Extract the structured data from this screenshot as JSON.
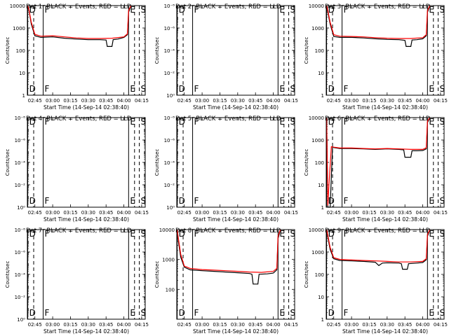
{
  "chart_data": [
    {
      "type": "line",
      "title": "Det 1r BLACK = Events, RED = LLD",
      "ylabel": "Counts/sec",
      "xlabel": "Start Time (14-Sep-14 02:38:40)",
      "x_ticks": [
        "02:45",
        "03:00",
        "03:15",
        "03:30",
        "03:45",
        "04:00",
        "04:15"
      ],
      "y_ticks": [
        "1",
        "10",
        "100",
        "1000",
        "10000"
      ],
      "ylim": [
        1,
        10000
      ],
      "y_scale": "log",
      "xlim": [
        "02:38:40",
        "04:18:00"
      ],
      "markers": [
        {
          "label": "D",
          "time": "02:39:00",
          "style": "solid"
        },
        {
          "label": "",
          "time": "02:44:00",
          "style": "dashed"
        },
        {
          "label": "F",
          "time": "02:52:00",
          "style": "solid"
        },
        {
          "label": "E",
          "time": "04:04:00",
          "style": "solid"
        },
        {
          "label": "",
          "time": "04:09:00",
          "style": "dashed"
        },
        {
          "label": "S",
          "time": "04:13:00",
          "style": "dashed"
        }
      ],
      "series": [
        {
          "name": "Events",
          "color": "#000000",
          "x": [
            "02:39:00",
            "02:40:00",
            "02:42:00",
            "02:45:00",
            "02:50:00",
            "03:00:00",
            "03:10:00",
            "03:20:00",
            "03:30:00",
            "03:40:00",
            "03:45:00",
            "03:46:00",
            "03:50:00",
            "03:51:00",
            "03:55:00",
            "04:00:00",
            "04:03:00",
            "04:04:00",
            "04:06:00"
          ],
          "y": [
            10000,
            6000,
            1500,
            450,
            380,
            400,
            350,
            320,
            300,
            300,
            290,
            150,
            150,
            300,
            320,
            380,
            500,
            5000,
            10000
          ]
        },
        {
          "name": "LLD",
          "color": "#ff0000",
          "x": [
            "02:39:00",
            "02:40:00",
            "02:42:00",
            "02:45:00",
            "02:50:00",
            "03:00:00",
            "03:10:00",
            "03:20:00",
            "03:30:00",
            "03:40:00",
            "03:50:00",
            "04:00:00",
            "04:03:00",
            "04:04:00",
            "04:06:00"
          ],
          "y": [
            10000,
            6500,
            1800,
            520,
            430,
            450,
            400,
            360,
            340,
            340,
            350,
            400,
            550,
            6000,
            10000
          ]
        }
      ]
    },
    {
      "type": "line",
      "title": "Det 2r BLACK = Events, RED = LLD",
      "ylabel": "Counts/sec",
      "xlabel": "Start Time (14-Sep-14 02:38:40)",
      "x_ticks": [
        "02:45",
        "03:00",
        "03:15",
        "03:30",
        "03:45",
        "04:00",
        "04:15"
      ],
      "y_ticks": [
        "10⁰",
        "10⁻²",
        "10⁻⁴",
        "10⁻⁶",
        "10⁻⁸"
      ],
      "ylim": [
        1e-08,
        1
      ],
      "y_scale": "log",
      "xlim": [
        "02:38:40",
        "04:18:00"
      ],
      "markers": [
        {
          "label": "D",
          "time": "02:39:00",
          "style": "solid"
        },
        {
          "label": "",
          "time": "02:44:00",
          "style": "dashed"
        },
        {
          "label": "F",
          "time": "02:52:00",
          "style": "solid"
        },
        {
          "label": "E",
          "time": "04:04:00",
          "style": "solid"
        },
        {
          "label": "",
          "time": "04:09:00",
          "style": "dashed"
        },
        {
          "label": "S",
          "time": "04:13:00",
          "style": "dashed"
        }
      ],
      "series": []
    },
    {
      "type": "line",
      "title": "Det 3r BLACK = Events, RED = LLD",
      "ylabel": "Counts/sec",
      "xlabel": "Start Time (14-Sep-14 02:38:40)",
      "x_ticks": [
        "02:45",
        "03:00",
        "03:15",
        "03:30",
        "03:45",
        "04:00",
        "04:15"
      ],
      "y_ticks": [
        "1",
        "10",
        "100",
        "1000",
        "10000"
      ],
      "ylim": [
        1,
        10000
      ],
      "y_scale": "log",
      "xlim": [
        "02:38:40",
        "04:18:00"
      ],
      "markers": [
        {
          "label": "D",
          "time": "02:39:00",
          "style": "solid"
        },
        {
          "label": "",
          "time": "02:44:00",
          "style": "dashed"
        },
        {
          "label": "F",
          "time": "02:52:00",
          "style": "solid"
        },
        {
          "label": "E",
          "time": "04:04:00",
          "style": "solid"
        },
        {
          "label": "",
          "time": "04:09:00",
          "style": "dashed"
        },
        {
          "label": "S",
          "time": "04:13:00",
          "style": "dashed"
        }
      ],
      "series": [
        {
          "name": "Events",
          "color": "#000000",
          "x": [
            "02:39:00",
            "02:40:00",
            "02:42:00",
            "02:45:00",
            "02:50:00",
            "03:00:00",
            "03:10:00",
            "03:20:00",
            "03:30:00",
            "03:40:00",
            "03:45:00",
            "03:46:00",
            "03:50:00",
            "03:51:00",
            "03:55:00",
            "04:00:00",
            "04:03:00",
            "04:04:00",
            "04:06:00"
          ],
          "y": [
            10000,
            5000,
            1500,
            420,
            380,
            380,
            360,
            330,
            310,
            300,
            280,
            150,
            150,
            290,
            300,
            330,
            450,
            5000,
            10000
          ]
        },
        {
          "name": "LLD",
          "color": "#ff0000",
          "x": [
            "02:39:00",
            "02:40:00",
            "02:42:00",
            "02:45:00",
            "02:50:00",
            "03:00:00",
            "03:10:00",
            "03:20:00",
            "03:30:00",
            "03:40:00",
            "03:50:00",
            "04:00:00",
            "04:03:00",
            "04:04:00",
            "04:06:00"
          ],
          "y": [
            10000,
            6000,
            1800,
            500,
            430,
            420,
            400,
            370,
            350,
            340,
            340,
            370,
            500,
            6000,
            10000
          ]
        }
      ]
    },
    {
      "type": "line",
      "title": "Det 4r BLACK = Events, RED = LLD",
      "ylabel": "Counts/sec",
      "xlabel": "Start Time (14-Sep-14 02:38:40)",
      "x_ticks": [
        "02:45",
        "03:00",
        "03:15",
        "03:30",
        "03:45",
        "04:00",
        "04:15"
      ],
      "y_ticks": [
        "10⁰",
        "10⁻²",
        "10⁻⁴",
        "10⁻⁶",
        "10⁻⁸"
      ],
      "ylim": [
        1e-08,
        1
      ],
      "y_scale": "log",
      "xlim": [
        "02:38:40",
        "04:18:00"
      ],
      "markers": [
        {
          "label": "D",
          "time": "02:39:00",
          "style": "solid"
        },
        {
          "label": "",
          "time": "02:44:00",
          "style": "dashed"
        },
        {
          "label": "F",
          "time": "02:52:00",
          "style": "solid"
        },
        {
          "label": "E",
          "time": "04:04:00",
          "style": "solid"
        },
        {
          "label": "",
          "time": "04:09:00",
          "style": "dashed"
        },
        {
          "label": "S",
          "time": "04:13:00",
          "style": "dashed"
        }
      ],
      "series": []
    },
    {
      "type": "line",
      "title": "Det 5r BLACK = Events, RED = LLD",
      "ylabel": "Counts/sec",
      "xlabel": "Start Time (14-Sep-14 02:38:40)",
      "x_ticks": [
        "02:45",
        "03:00",
        "03:15",
        "03:30",
        "03:45",
        "04:00",
        "04:15"
      ],
      "y_ticks": [
        "10⁰",
        "10⁻²",
        "10⁻⁴",
        "10⁻⁶",
        "10⁻⁸"
      ],
      "ylim": [
        1e-08,
        1
      ],
      "y_scale": "log",
      "xlim": [
        "02:38:40",
        "04:18:00"
      ],
      "markers": [
        {
          "label": "D",
          "time": "02:39:00",
          "style": "solid"
        },
        {
          "label": "",
          "time": "02:44:00",
          "style": "dashed"
        },
        {
          "label": "F",
          "time": "02:52:00",
          "style": "solid"
        },
        {
          "label": "E",
          "time": "04:04:00",
          "style": "solid"
        },
        {
          "label": "",
          "time": "04:09:00",
          "style": "dashed"
        },
        {
          "label": "S",
          "time": "04:13:00",
          "style": "dashed"
        }
      ],
      "series": []
    },
    {
      "type": "line",
      "title": "Det 6r BLACK = Events, RED = LLD",
      "ylabel": "Counts/sec",
      "xlabel": "Start Time (14-Sep-14 02:38:40)",
      "x_ticks": [
        "02:45",
        "03:00",
        "03:15",
        "03:30",
        "03:45",
        "04:00",
        "04:15"
      ],
      "y_ticks": [
        "1",
        "10",
        "100",
        "1000",
        "10000"
      ],
      "ylim": [
        1,
        10000
      ],
      "y_scale": "log",
      "xlim": [
        "02:38:40",
        "04:18:00"
      ],
      "markers": [
        {
          "label": "D",
          "time": "02:39:00",
          "style": "solid"
        },
        {
          "label": "",
          "time": "02:44:00",
          "style": "dashed"
        },
        {
          "label": "F",
          "time": "02:52:00",
          "style": "solid"
        },
        {
          "label": "E",
          "time": "04:04:00",
          "style": "solid"
        },
        {
          "label": "",
          "time": "04:09:00",
          "style": "dashed"
        },
        {
          "label": "S",
          "time": "04:13:00",
          "style": "dashed"
        }
      ],
      "series": [
        {
          "name": "Events",
          "color": "#000000",
          "x": [
            "02:39:00",
            "02:40:00",
            "02:42:00",
            "02:44:00",
            "02:45:00",
            "02:50:00",
            "03:00:00",
            "03:10:00",
            "03:20:00",
            "03:30:00",
            "03:40:00",
            "03:44:00",
            "03:45:00",
            "03:50:00",
            "03:51:00",
            "03:55:00",
            "04:00:00",
            "04:03:00",
            "04:04:00",
            "04:06:00"
          ],
          "y": [
            10000,
            1,
            1,
            500,
            460,
            420,
            420,
            400,
            380,
            400,
            380,
            360,
            170,
            170,
            330,
            330,
            340,
            400,
            6000,
            10000
          ]
        },
        {
          "name": "LLD",
          "color": "#ff0000",
          "x": [
            "02:39:00",
            "02:40:00",
            "02:41:00",
            "02:43:00",
            "02:45:00",
            "02:50:00",
            "03:00:00",
            "03:10:00",
            "03:20:00",
            "03:30:00",
            "03:40:00",
            "03:50:00",
            "04:00:00",
            "04:03:00",
            "04:04:00",
            "04:06:00"
          ],
          "y": [
            10000,
            1.2,
            10,
            500,
            480,
            440,
            440,
            420,
            400,
            420,
            400,
            380,
            380,
            450,
            7000,
            10000
          ]
        }
      ]
    },
    {
      "type": "line",
      "title": "Det 7r BLACK = Events, RED = LLD",
      "ylabel": "Counts/sec",
      "xlabel": "Start Time (14-Sep-14 02:38:40)",
      "x_ticks": [
        "02:45",
        "03:00",
        "03:15",
        "03:30",
        "03:45",
        "04:00",
        "04:15"
      ],
      "y_ticks": [
        "10⁰",
        "10⁻²",
        "10⁻⁴",
        "10⁻⁶",
        "10⁻⁸"
      ],
      "ylim": [
        1e-08,
        1
      ],
      "y_scale": "log",
      "xlim": [
        "02:38:40",
        "04:18:00"
      ],
      "markers": [
        {
          "label": "D",
          "time": "02:39:00",
          "style": "solid"
        },
        {
          "label": "",
          "time": "02:44:00",
          "style": "dashed"
        },
        {
          "label": "F",
          "time": "02:52:00",
          "style": "solid"
        },
        {
          "label": "E",
          "time": "04:04:00",
          "style": "solid"
        },
        {
          "label": "",
          "time": "04:09:00",
          "style": "dashed"
        },
        {
          "label": "S",
          "time": "04:13:00",
          "style": "dashed"
        }
      ],
      "series": []
    },
    {
      "type": "line",
      "title": "Det 8r BLACK = Events, RED = LLD",
      "ylabel": "Counts/sec",
      "xlabel": "Start Time (14-Sep-14 02:38:40)",
      "x_ticks": [
        "02:45",
        "03:00",
        "03:15",
        "03:30",
        "03:45",
        "04:00",
        "04:15"
      ],
      "y_ticks": [
        "100",
        "1000",
        "10000"
      ],
      "ylim": [
        10,
        10000
      ],
      "y_scale": "log",
      "xlim": [
        "02:38:40",
        "04:18:00"
      ],
      "markers": [
        {
          "label": "D",
          "time": "02:39:00",
          "style": "solid"
        },
        {
          "label": "",
          "time": "02:44:00",
          "style": "dashed"
        },
        {
          "label": "F",
          "time": "02:52:00",
          "style": "solid"
        },
        {
          "label": "E",
          "time": "04:04:00",
          "style": "solid"
        },
        {
          "label": "",
          "time": "04:09:00",
          "style": "dashed"
        },
        {
          "label": "S",
          "time": "04:13:00",
          "style": "dashed"
        }
      ],
      "series": [
        {
          "name": "Events",
          "color": "#000000",
          "x": [
            "02:39:00",
            "02:40:00",
            "02:42:00",
            "02:45:00",
            "02:50:00",
            "03:00:00",
            "03:10:00",
            "03:20:00",
            "03:30:00",
            "03:40:00",
            "03:42:00",
            "03:43:00",
            "03:47:00",
            "03:48:00",
            "03:55:00",
            "04:00:00",
            "04:03:00",
            "04:04:00",
            "04:06:00"
          ],
          "y": [
            10000,
            4000,
            1200,
            550,
            450,
            420,
            400,
            380,
            360,
            340,
            320,
            150,
            150,
            320,
            330,
            350,
            450,
            5000,
            10000
          ]
        },
        {
          "name": "LLD",
          "color": "#ff0000",
          "x": [
            "02:39:00",
            "02:40:00",
            "02:42:00",
            "02:45:00",
            "02:50:00",
            "03:00:00",
            "03:10:00",
            "03:20:00",
            "03:30:00",
            "03:40:00",
            "03:50:00",
            "04:00:00",
            "04:03:00",
            "04:04:00",
            "04:06:00"
          ],
          "y": [
            10000,
            5000,
            1500,
            600,
            500,
            460,
            440,
            420,
            400,
            380,
            370,
            400,
            500,
            6000,
            10000
          ]
        }
      ]
    },
    {
      "type": "line",
      "title": "Det 9r BLACK = Events, RED = LLD",
      "ylabel": "Counts/sec",
      "xlabel": "Start Time (14-Sep-14 02:38:40)",
      "x_ticks": [
        "02:45",
        "03:00",
        "03:15",
        "03:30",
        "03:45",
        "04:00",
        "04:15"
      ],
      "y_ticks": [
        "1",
        "10",
        "100",
        "1000",
        "10000"
      ],
      "ylim": [
        1,
        10000
      ],
      "y_scale": "log",
      "xlim": [
        "02:38:40",
        "04:18:00"
      ],
      "markers": [
        {
          "label": "D",
          "time": "02:39:00",
          "style": "solid"
        },
        {
          "label": "",
          "time": "02:44:00",
          "style": "dashed"
        },
        {
          "label": "F",
          "time": "02:52:00",
          "style": "solid"
        },
        {
          "label": "E",
          "time": "04:04:00",
          "style": "solid"
        },
        {
          "label": "",
          "time": "04:09:00",
          "style": "dashed"
        },
        {
          "label": "S",
          "time": "04:13:00",
          "style": "dashed"
        }
      ],
      "series": [
        {
          "name": "Events",
          "color": "#000000",
          "x": [
            "02:39:00",
            "02:40:00",
            "02:42:00",
            "02:45:00",
            "02:50:00",
            "03:00:00",
            "03:10:00",
            "03:20:00",
            "03:23:00",
            "03:26:00",
            "03:30:00",
            "03:40:00",
            "03:42:00",
            "03:43:00",
            "03:47:00",
            "03:48:00",
            "03:55:00",
            "04:00:00",
            "04:03:00",
            "04:04:00",
            "04:06:00"
          ],
          "y": [
            10000,
            4500,
            1300,
            500,
            420,
            400,
            380,
            350,
            250,
            320,
            330,
            320,
            300,
            170,
            170,
            300,
            320,
            340,
            450,
            5000,
            10000
          ]
        },
        {
          "name": "LLD",
          "color": "#ff0000",
          "x": [
            "02:39:00",
            "02:40:00",
            "02:42:00",
            "02:45:00",
            "02:50:00",
            "03:00:00",
            "03:10:00",
            "03:20:00",
            "03:30:00",
            "03:40:00",
            "03:50:00",
            "04:00:00",
            "04:03:00",
            "04:04:00",
            "04:06:00"
          ],
          "y": [
            10000,
            5500,
            1600,
            560,
            470,
            440,
            420,
            400,
            380,
            360,
            360,
            380,
            500,
            6000,
            10000
          ]
        }
      ]
    }
  ]
}
